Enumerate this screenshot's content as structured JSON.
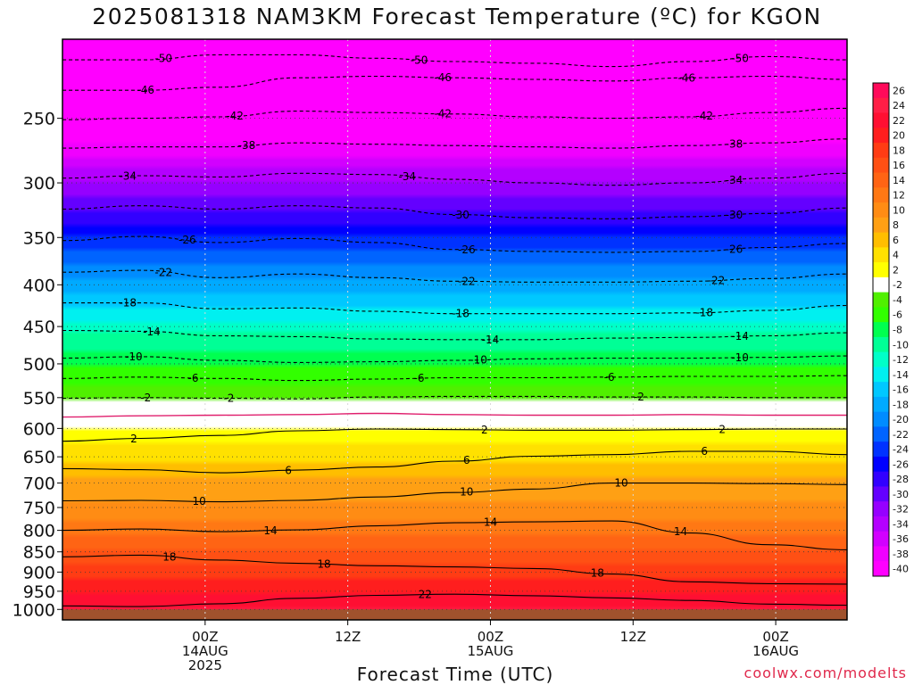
{
  "title": "2025081318 NAM3KM Forecast Temperature (ºC) for KGON",
  "credit": "coolwx.com/modelts",
  "chart_data": {
    "type": "heatmap",
    "title": "2025081318 NAM3KM Forecast Temperature (ºC) for KGON",
    "xlabel": "Forecast Time (UTC)",
    "ylabel": "",
    "y_scale": "log-pressure",
    "y_range_hpa": [
      1030,
      200
    ],
    "y_ticks": [
      250,
      300,
      350,
      400,
      450,
      500,
      550,
      600,
      650,
      700,
      750,
      800,
      850,
      900,
      950,
      1000
    ],
    "x_range_hours": [
      -6,
      60
    ],
    "x_ticks": [
      {
        "hour": 6,
        "lines": [
          "00Z",
          "14AUG",
          "2025"
        ]
      },
      {
        "hour": 18,
        "lines": [
          "12Z"
        ]
      },
      {
        "hour": 30,
        "lines": [
          "00Z",
          "15AUG"
        ]
      },
      {
        "hour": 42,
        "lines": [
          "12Z"
        ]
      },
      {
        "hour": 54,
        "lines": [
          "00Z",
          "16AUG"
        ]
      }
    ],
    "colorbar": {
      "labels": [
        "26",
        "24",
        "22",
        "20",
        "18",
        "16",
        "14",
        "12",
        "10",
        "8",
        "6",
        "4",
        "2",
        "-2",
        "-4",
        "-6",
        "-8",
        "-10",
        "-12",
        "-14",
        "-16",
        "-18",
        "-20",
        "-22",
        "-24",
        "-26",
        "-28",
        "-30",
        "-32",
        "-34",
        "-36",
        "-38",
        "-40"
      ],
      "colors": [
        "#ff0a5a",
        "#ff1e46",
        "#ff0f32",
        "#ff1e1e",
        "#ff3c14",
        "#ff5014",
        "#ff6414",
        "#ff7814",
        "#ff8c14",
        "#ffa014",
        "#ffbe00",
        "#ffe100",
        "#ffff00",
        "#ffffff",
        "#50f000",
        "#32ff00",
        "#00ff50",
        "#00ff96",
        "#00ffc8",
        "#00f0f0",
        "#00c8ff",
        "#00aaff",
        "#008cff",
        "#0064ff",
        "#0032ff",
        "#0000ff",
        "#3200ff",
        "#6400ff",
        "#9600ff",
        "#b400ff",
        "#d200ff",
        "#f000ff",
        "#ff00ff"
      ]
    },
    "temperature_profile": [
      {
        "p": 1030,
        "t": 24
      },
      {
        "p": 1000,
        "t": 24
      },
      {
        "p": 950,
        "t": 21.5
      },
      {
        "p": 900,
        "t": 19
      },
      {
        "p": 850,
        "t": 16.5
      },
      {
        "p": 800,
        "t": 13.5
      },
      {
        "p": 750,
        "t": 10.5
      },
      {
        "p": 700,
        "t": 8.5
      },
      {
        "p": 650,
        "t": 5.5
      },
      {
        "p": 600,
        "t": 2
      },
      {
        "p": 575,
        "t": 0
      },
      {
        "p": 560,
        "t": -1.5
      },
      {
        "p": 550,
        "t": -2.5
      },
      {
        "p": 500,
        "t": -6
      },
      {
        "p": 450,
        "t": -11
      },
      {
        "p": 400,
        "t": -17
      },
      {
        "p": 350,
        "t": -24
      },
      {
        "p": 300,
        "t": -32
      },
      {
        "p": 250,
        "t": -41
      },
      {
        "p": 200,
        "t": -52
      }
    ],
    "contours": [
      {
        "value": -50,
        "dashed": true,
        "p": [
          212,
          212,
          209,
          209,
          211,
          213,
          214,
          216,
          213,
          210,
          212
        ],
        "labels": [
          [
            2.5,
            "-50"
          ],
          [
            24,
            "-50"
          ],
          [
            51,
            "-50"
          ]
        ]
      },
      {
        "value": -46,
        "dashed": true,
        "p": [
          231,
          231,
          229,
          223,
          222,
          223,
          224,
          225,
          223,
          222,
          224
        ],
        "labels": [
          [
            1,
            "-46"
          ],
          [
            26,
            "-46"
          ],
          [
            46.5,
            "-46"
          ]
        ]
      },
      {
        "value": -42,
        "dashed": true,
        "p": [
          251,
          250,
          249,
          245,
          246,
          247,
          249,
          250,
          249,
          246,
          243
        ],
        "labels": [
          [
            8.5,
            "-42"
          ],
          [
            26,
            "-42"
          ],
          [
            48,
            "-42"
          ]
        ]
      },
      {
        "value": -38,
        "dashed": true,
        "p": [
          272,
          271,
          271,
          268,
          269,
          270,
          271,
          272,
          270,
          268,
          265
        ],
        "labels": [
          [
            9.5,
            "-38"
          ],
          [
            50.5,
            "-38"
          ]
        ]
      },
      {
        "value": -34,
        "dashed": true,
        "p": [
          296,
          294,
          295,
          292,
          293,
          297,
          300,
          302,
          300,
          296,
          292
        ],
        "labels": [
          [
            -0.5,
            "-34"
          ],
          [
            23,
            "-34"
          ],
          [
            50.5,
            "-34"
          ]
        ]
      },
      {
        "value": -30,
        "dashed": true,
        "p": [
          323,
          320,
          323,
          320,
          322,
          328,
          331,
          332,
          330,
          327,
          322
        ],
        "labels": [
          [
            27.5,
            "-30"
          ],
          [
            50.5,
            "-30"
          ]
        ]
      },
      {
        "value": -26,
        "dashed": true,
        "p": [
          353,
          349,
          355,
          351,
          355,
          362,
          364,
          365,
          364,
          360,
          356
        ],
        "labels": [
          [
            4.5,
            "-26"
          ],
          [
            28,
            "-26"
          ],
          [
            50.5,
            "-26"
          ]
        ]
      },
      {
        "value": -22,
        "dashed": true,
        "p": [
          386,
          384,
          392,
          388,
          392,
          396,
          397,
          397,
          396,
          393,
          388
        ],
        "labels": [
          [
            2.5,
            "-22"
          ],
          [
            28,
            "-22"
          ],
          [
            49,
            "-22"
          ]
        ]
      },
      {
        "value": -18,
        "dashed": true,
        "p": [
          421,
          421,
          428,
          427,
          431,
          434,
          434,
          434,
          433,
          430,
          424
        ],
        "labels": [
          [
            -0.5,
            "-18"
          ],
          [
            27.5,
            "-18"
          ],
          [
            48,
            "-18"
          ]
        ]
      },
      {
        "value": -14,
        "dashed": true,
        "p": [
          455,
          456,
          462,
          463,
          466,
          467,
          467,
          465,
          464,
          462,
          458
        ],
        "labels": [
          [
            1.5,
            "-14"
          ],
          [
            30,
            "-14"
          ],
          [
            51,
            "-14"
          ]
        ]
      },
      {
        "value": -10,
        "dashed": true,
        "p": [
          492,
          490,
          495,
          498,
          497,
          495,
          493,
          492,
          492,
          491,
          489
        ],
        "labels": [
          [
            0,
            "-10"
          ],
          [
            29,
            "-10"
          ],
          [
            51,
            "-10"
          ]
        ]
      },
      {
        "value": -6,
        "dashed": true,
        "p": [
          521,
          519,
          521,
          524,
          522,
          520,
          520,
          519,
          518,
          518,
          517
        ],
        "labels": [
          [
            5,
            "-6"
          ],
          [
            24,
            "-6"
          ],
          [
            40,
            "-6"
          ]
        ]
      },
      {
        "value": -2,
        "dashed": true,
        "p": [
          551,
          550,
          551,
          552,
          549,
          548,
          548,
          549,
          549,
          550,
          550
        ],
        "labels": [
          [
            8,
            "-2"
          ],
          [
            42.5,
            "-2"
          ],
          [
            1,
            "-2"
          ]
        ]
      },
      {
        "value": 0,
        "pink": true,
        "p": [
          581,
          579,
          578,
          577,
          575,
          577,
          578,
          578,
          577,
          578,
          578
        ],
        "labels": []
      },
      {
        "value": 2,
        "solid": true,
        "p": [
          622,
          617,
          612,
          604,
          601,
          602,
          603,
          603,
          602,
          601,
          601
        ],
        "labels": [
          [
            0,
            "2"
          ],
          [
            29.5,
            "2"
          ],
          [
            49.5,
            "2"
          ]
        ]
      },
      {
        "value": 6,
        "solid": true,
        "p": [
          672,
          674,
          680,
          675,
          669,
          658,
          649,
          646,
          640,
          640,
          646
        ],
        "labels": [
          [
            13,
            "6"
          ],
          [
            28,
            "6"
          ],
          [
            48,
            "6"
          ]
        ]
      },
      {
        "value": 10,
        "solid": true,
        "p": [
          736,
          735,
          738,
          735,
          728,
          719,
          712,
          700,
          700,
          701,
          703
        ],
        "labels": [
          [
            5.5,
            "10"
          ],
          [
            28,
            "10"
          ],
          [
            41,
            "10"
          ]
        ]
      },
      {
        "value": 14,
        "solid": true,
        "p": [
          800,
          797,
          803,
          799,
          790,
          783,
          781,
          779,
          806,
          833,
          845
        ],
        "labels": [
          [
            11.5,
            "14"
          ],
          [
            30,
            "14"
          ],
          [
            46,
            "14"
          ]
        ]
      },
      {
        "value": 18,
        "solid": true,
        "p": [
          862,
          858,
          870,
          878,
          884,
          887,
          891,
          905,
          925,
          930,
          931
        ],
        "labels": [
          [
            3,
            "18"
          ],
          [
            16,
            "18"
          ],
          [
            39,
            "18"
          ]
        ]
      },
      {
        "value": 22,
        "solid": true,
        "p": [
          990,
          992,
          984,
          969,
          961,
          958,
          962,
          968,
          975,
          985,
          988
        ],
        "labels": [
          [
            24.5,
            "22"
          ]
        ]
      }
    ],
    "grid": true,
    "ground_color": "#a0522d"
  }
}
